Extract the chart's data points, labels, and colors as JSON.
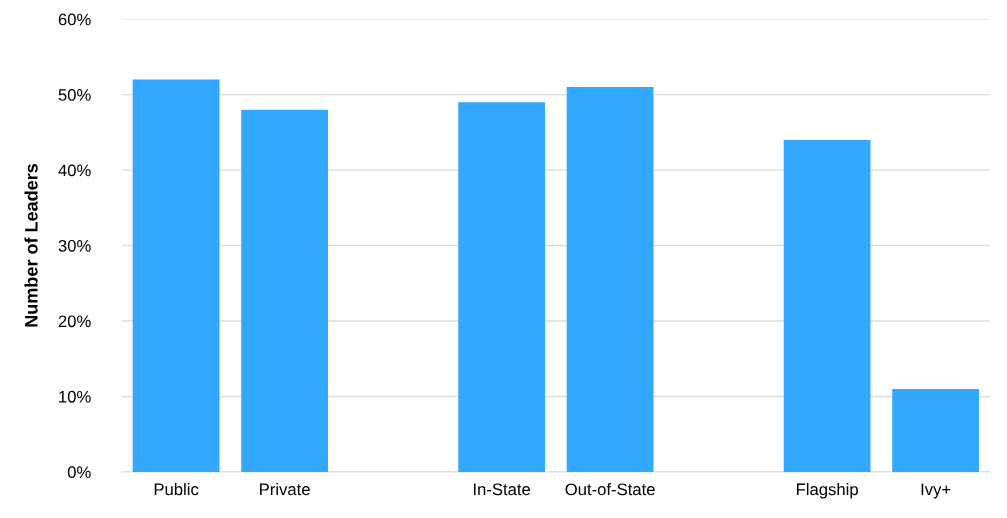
{
  "chart_data": {
    "type": "bar",
    "ylabel": "Number of Leaders",
    "categories": [
      "Public",
      "Private",
      null,
      "In-State",
      "Out-of-State",
      null,
      "Flagship",
      "Ivy+"
    ],
    "values": [
      52,
      48,
      null,
      49,
      51,
      null,
      44,
      11
    ],
    "color": "#33a8ff",
    "ylim": [
      0,
      60
    ],
    "yticks": [
      {
        "value": 0,
        "label": "0%"
      },
      {
        "value": 10,
        "label": "10%"
      },
      {
        "value": 20,
        "label": "20%"
      },
      {
        "value": 30,
        "label": "30%"
      },
      {
        "value": 40,
        "label": "40%"
      },
      {
        "value": 50,
        "label": "50%"
      },
      {
        "value": 60,
        "label": "60%"
      }
    ],
    "grid": "y",
    "legend": false
  }
}
